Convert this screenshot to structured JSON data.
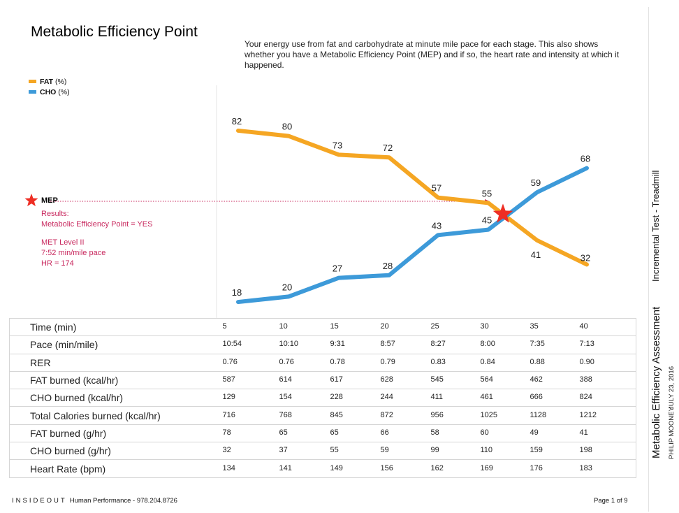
{
  "header": {
    "title": "Metabolic Efficiency Point",
    "subtitle": "Your energy use from fat and carbohydrate at minute mile pace for each stage. This also shows whether you have a Metabolic Efficiency Point (MEP) and if so, the heart rate and intensity at which it happened."
  },
  "legend": [
    {
      "name": "FAT",
      "unit": "(%)",
      "color": "#f5a623"
    },
    {
      "name": "CHO",
      "unit": "(%)",
      "color": "#3d9ad9"
    }
  ],
  "chart_data": {
    "type": "line",
    "x": [
      5,
      10,
      15,
      20,
      25,
      30,
      35,
      40
    ],
    "series": [
      {
        "name": "FAT",
        "values": [
          82,
          80,
          73,
          72,
          57,
          55,
          41,
          32
        ],
        "color": "#f5a623"
      },
      {
        "name": "CHO",
        "values": [
          18,
          20,
          27,
          28,
          43,
          45,
          59,
          68
        ],
        "color": "#3d9ad9"
      }
    ],
    "ylim": [
      0,
      100
    ],
    "mep_x": 31.5
  },
  "mep": {
    "label": "MEP",
    "lines": [
      "Results:",
      "Metabolic Efficiency Point = YES",
      "",
      "MET Level II",
      "7:52 min/mile pace",
      "HR = 174"
    ],
    "color": "#c8285e",
    "star_color": "#ee2e24"
  },
  "table": {
    "rows": [
      {
        "label": "Time (min)",
        "values": [
          "5",
          "10",
          "15",
          "20",
          "25",
          "30",
          "35",
          "40"
        ]
      },
      {
        "label": "Pace (min/mile)",
        "values": [
          "10:54",
          "10:10",
          "9:31",
          "8:57",
          "8:27",
          "8:00",
          "7:35",
          "7:13"
        ]
      },
      {
        "label": "RER",
        "values": [
          "0.76",
          "0.76",
          "0.78",
          "0.79",
          "0.83",
          "0.84",
          "0.88",
          "0.90"
        ]
      },
      {
        "label": "FAT burned (kcal/hr)",
        "values": [
          "587",
          "614",
          "617",
          "628",
          "545",
          "564",
          "462",
          "388"
        ]
      },
      {
        "label": "CHO burned (kcal/hr)",
        "values": [
          "129",
          "154",
          "228",
          "244",
          "411",
          "461",
          "666",
          "824"
        ]
      },
      {
        "label": "Total Calories burned (kcal/hr)",
        "values": [
          "716",
          "768",
          "845",
          "872",
          "956",
          "1025",
          "1128",
          "1212"
        ]
      },
      {
        "label": "FAT burned (g/hr)",
        "values": [
          "78",
          "65",
          "65",
          "66",
          "58",
          "60",
          "49",
          "41"
        ]
      },
      {
        "label": "CHO burned (g/hr)",
        "values": [
          "32",
          "37",
          "55",
          "59",
          "99",
          "110",
          "159",
          "198"
        ]
      },
      {
        "label": "Heart Rate (bpm)",
        "values": [
          "134",
          "141",
          "149",
          "156",
          "162",
          "169",
          "176",
          "183"
        ]
      }
    ]
  },
  "footer": {
    "brand": "INSIDEOUT",
    "contact": "Human Performance - 978.204.8726",
    "page": "Page 1 of 9"
  },
  "sidebar": {
    "test": "Incremental Test - Treadmill",
    "assessment": "Metabolic Efficiency Assessment",
    "name": "PHILIP MOONEY",
    "date": "JULY 23, 2016"
  }
}
